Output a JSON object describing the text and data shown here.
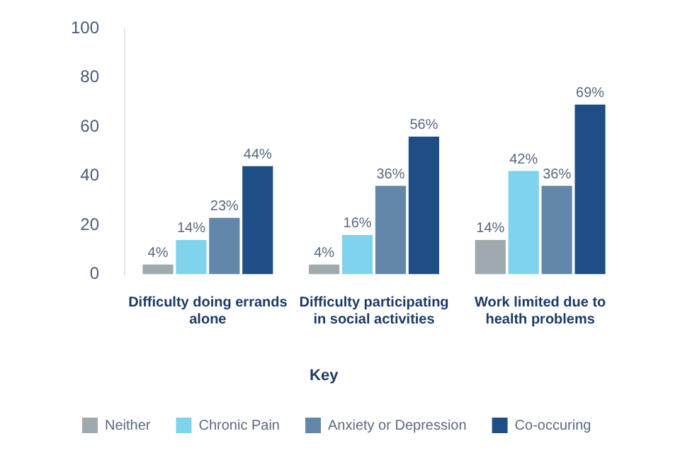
{
  "chart_data": {
    "type": "bar",
    "categories": [
      "Difficulty doing errands alone",
      "Difficulty participating in social activities",
      "Work limited due to health problems"
    ],
    "series": [
      {
        "name": "Neither",
        "color": "#9eaaad",
        "values": [
          4,
          4,
          14
        ],
        "value_labels": [
          "4%",
          "4%",
          "14%"
        ]
      },
      {
        "name": "Chronic Pain",
        "color": "#80d3ec",
        "values": [
          14,
          16,
          42
        ],
        "value_labels": [
          "14%",
          "16%",
          "42%"
        ]
      },
      {
        "name": "Anxiety or Depression",
        "color": "#6287ab",
        "values": [
          23,
          36,
          36
        ],
        "value_labels": [
          "23%",
          "36%",
          "36%"
        ]
      },
      {
        "name": "Co-occuring",
        "color": "#1f4e86",
        "values": [
          44,
          56,
          69
        ],
        "value_labels": [
          "44%",
          "56%",
          "69%"
        ]
      }
    ],
    "ylim": [
      0,
      100
    ],
    "yticks": [
      0,
      20,
      40,
      60,
      80,
      100
    ],
    "grid": false,
    "legend": "bottom",
    "legend_title": "Key"
  }
}
